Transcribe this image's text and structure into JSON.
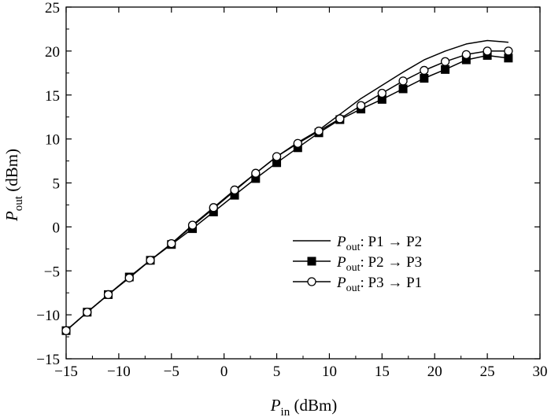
{
  "chart_data": {
    "type": "line",
    "xlabel": {
      "main": "P",
      "sub": "in",
      "unit": " (dBm)"
    },
    "ylabel": {
      "main": "P",
      "sub": "out",
      "unit": " (dBm)"
    },
    "xlim": [
      -15,
      30
    ],
    "ylim": [
      -15,
      25
    ],
    "xticks": [
      -15,
      -10,
      -5,
      0,
      5,
      10,
      15,
      20,
      25,
      30
    ],
    "xtick_labels": [
      "−15",
      "−10",
      "−5",
      "0",
      "5",
      "10",
      "15",
      "20",
      "25",
      "30"
    ],
    "yticks": [
      -15,
      -10,
      -5,
      0,
      5,
      10,
      15,
      20,
      25
    ],
    "ytick_labels": [
      "−15",
      "−10",
      "−5",
      "0",
      "5",
      "10",
      "15",
      "20",
      "25"
    ],
    "grid": false,
    "legend_position": "center-right",
    "series": [
      {
        "name": "P_out: P1 → P2",
        "legend": {
          "main": "P",
          "sub": "out",
          "text": ": P1 → P2"
        },
        "marker": "none",
        "x": [
          -15,
          -13,
          -11,
          -9,
          -7,
          -5,
          -3,
          -1,
          1,
          3,
          5,
          7,
          9,
          11,
          13,
          15,
          17,
          19,
          21,
          23,
          25,
          27
        ],
        "y": [
          -11.8,
          -9.7,
          -7.7,
          -5.7,
          -3.8,
          -1.9,
          0.1,
          2.1,
          4.1,
          6.1,
          8.0,
          9.6,
          11.0,
          12.8,
          14.6,
          16.1,
          17.6,
          19.0,
          20.0,
          20.8,
          21.2,
          21.0
        ]
      },
      {
        "name": "P_out: P2 → P3",
        "legend": {
          "main": "P",
          "sub": "out",
          "text": ": P2 → P3"
        },
        "marker": "square",
        "x": [
          -15,
          -13,
          -11,
          -9,
          -7,
          -5,
          -3,
          -1,
          1,
          3,
          5,
          7,
          9,
          11,
          13,
          15,
          17,
          19,
          21,
          23,
          25,
          27
        ],
        "y": [
          -11.8,
          -9.7,
          -7.7,
          -5.7,
          -3.8,
          -2.0,
          -0.2,
          1.7,
          3.6,
          5.5,
          7.3,
          9.0,
          10.7,
          12.2,
          13.4,
          14.5,
          15.7,
          16.9,
          17.9,
          19.0,
          19.5,
          19.2
        ]
      },
      {
        "name": "P_out: P3 → P1",
        "legend": {
          "main": "P",
          "sub": "out",
          "text": ": P3 → P1"
        },
        "marker": "circle",
        "x": [
          -15,
          -13,
          -11,
          -9,
          -7,
          -5,
          -3,
          -1,
          1,
          3,
          5,
          7,
          9,
          11,
          13,
          15,
          17,
          19,
          21,
          23,
          25,
          27
        ],
        "y": [
          -11.8,
          -9.7,
          -7.7,
          -5.8,
          -3.8,
          -1.9,
          0.2,
          2.2,
          4.2,
          6.1,
          8.0,
          9.5,
          10.9,
          12.3,
          13.8,
          15.2,
          16.6,
          17.8,
          18.8,
          19.6,
          20.0,
          20.0
        ]
      }
    ]
  }
}
